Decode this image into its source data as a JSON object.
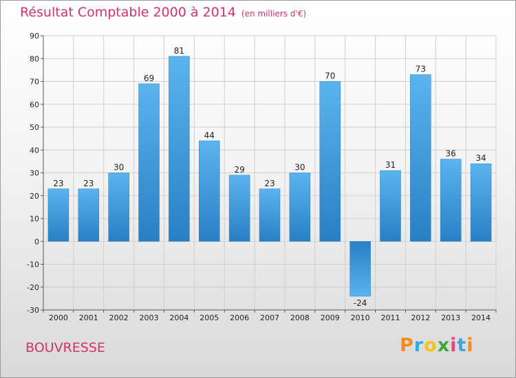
{
  "title": "Résultat Comptable 2000 à 2014",
  "subtitle": "(en milliers d'€)",
  "place": "BOUVRESSE",
  "logo": {
    "letters": [
      "P",
      "r",
      "o",
      "x",
      "i",
      "t",
      "i"
    ],
    "colors": [
      "#f28c1e",
      "#3ba7e0",
      "#f2c21e",
      "#3aaa35",
      "#e8457a",
      "#3ba7e0",
      "#f28c1e"
    ]
  },
  "colors": {
    "bar": "#3f9ee0",
    "bar_dark": "#2a7fc4",
    "grid": "#cfcfcf",
    "title": "#d4326b"
  },
  "chart_data": {
    "type": "bar",
    "title": "Résultat Comptable 2000 à 2014",
    "subtitle": "(en milliers d'€)",
    "categories": [
      "2000",
      "2001",
      "2002",
      "2003",
      "2004",
      "2005",
      "2006",
      "2007",
      "2008",
      "2009",
      "2010",
      "2011",
      "2012",
      "2013",
      "2014"
    ],
    "values": [
      23,
      23,
      30,
      69,
      81,
      44,
      29,
      23,
      30,
      70,
      -24,
      31,
      73,
      36,
      34
    ],
    "ylim": [
      -30,
      90
    ],
    "yticks": [
      -30,
      -20,
      -10,
      0,
      10,
      20,
      30,
      40,
      50,
      60,
      70,
      80,
      90
    ],
    "grid": true
  }
}
